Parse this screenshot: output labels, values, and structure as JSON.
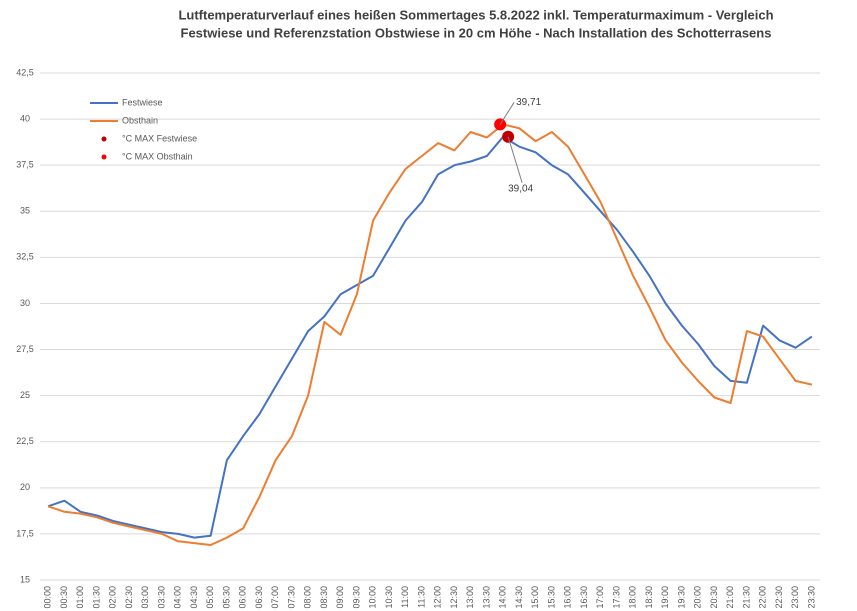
{
  "chart_data": {
    "type": "line",
    "title": [
      "Lutftemperaturverlauf eines heißen Sommertages 5.8.2022 inkl. Temperaturmaximum - Vergleich",
      "Festwiese und Referenzstation Obstwiese in 20 cm Höhe - Nach Installation des Schotterrasens"
    ],
    "categories": [
      "00:00",
      "00:30",
      "01:00",
      "01:30",
      "02:00",
      "02:30",
      "03:00",
      "03:30",
      "04:00",
      "04:30",
      "05:00",
      "05:30",
      "06:00",
      "06:30",
      "07:00",
      "07:30",
      "08:00",
      "08:30",
      "09:00",
      "09:30",
      "10:00",
      "10:30",
      "11:00",
      "11:30",
      "12:00",
      "12:30",
      "13:00",
      "13:30",
      "14:00",
      "14:30",
      "15:00",
      "15:30",
      "16:00",
      "16:30",
      "17:00",
      "17:30",
      "18:00",
      "18:30",
      "19:00",
      "19:30",
      "20:00",
      "20:30",
      "21:00",
      "21:30",
      "22:00",
      "22:30",
      "23:00",
      "23:30"
    ],
    "series": [
      {
        "name": "Festwiese",
        "color": "#4472c4",
        "values": [
          19.0,
          19.3,
          18.7,
          18.5,
          18.2,
          18.0,
          17.8,
          17.6,
          17.5,
          17.3,
          17.4,
          21.5,
          22.8,
          24.0,
          25.5,
          27.0,
          28.5,
          29.3,
          30.5,
          31.0,
          31.5,
          33.0,
          34.5,
          35.5,
          37.0,
          37.5,
          37.7,
          38.0,
          39.04,
          38.5,
          38.2,
          37.5,
          37.0,
          36.0,
          35.0,
          34.0,
          32.8,
          31.5,
          30.0,
          28.8,
          27.8,
          26.6,
          25.8,
          25.7,
          28.8,
          28.0,
          27.6,
          28.2
        ]
      },
      {
        "name": "Obsthain",
        "color": "#ed7d31",
        "values": [
          19.0,
          18.7,
          18.6,
          18.4,
          18.1,
          17.9,
          17.7,
          17.5,
          17.1,
          17.0,
          16.9,
          17.3,
          17.8,
          19.5,
          21.5,
          22.8,
          25.0,
          29.0,
          28.3,
          30.5,
          34.5,
          36.0,
          37.3,
          38.0,
          38.7,
          38.3,
          39.3,
          39.0,
          39.71,
          39.5,
          38.8,
          39.3,
          38.5,
          37.0,
          35.5,
          33.5,
          31.5,
          29.8,
          28.0,
          26.8,
          25.8,
          24.9,
          24.6,
          28.5,
          28.2,
          27.0,
          25.8,
          25.6
        ]
      },
      {
        "name": "°C MAX Festwiese",
        "color": "#c00000",
        "marker": true,
        "values": [
          null,
          null,
          null,
          null,
          null,
          null,
          null,
          null,
          null,
          null,
          null,
          null,
          null,
          null,
          null,
          null,
          null,
          null,
          null,
          null,
          null,
          null,
          null,
          null,
          null,
          null,
          null,
          null,
          39.04,
          null,
          null,
          null,
          null,
          null,
          null,
          null,
          null,
          null,
          null,
          null,
          null,
          null,
          null,
          null,
          null,
          null,
          null,
          null
        ],
        "value_labels": [
          null,
          null,
          null,
          null,
          null,
          null,
          null,
          null,
          null,
          null,
          null,
          null,
          null,
          null,
          null,
          null,
          null,
          null,
          null,
          null,
          null,
          null,
          null,
          null,
          null,
          null,
          null,
          null,
          "39,04",
          null,
          null,
          null,
          null,
          null,
          null,
          null,
          null,
          null,
          null,
          null,
          null,
          null,
          null,
          null,
          null,
          null,
          null,
          null
        ]
      },
      {
        "name": "°C MAX Obsthain",
        "color": "#ff0000",
        "marker": true,
        "values": [
          null,
          null,
          null,
          null,
          null,
          null,
          null,
          null,
          null,
          null,
          null,
          null,
          null,
          null,
          null,
          null,
          null,
          null,
          null,
          null,
          null,
          null,
          null,
          null,
          null,
          null,
          null,
          null,
          39.71,
          null,
          null,
          null,
          null,
          null,
          null,
          null,
          null,
          null,
          null,
          null,
          null,
          null,
          null,
          null,
          null,
          null,
          null,
          null
        ],
        "value_labels": [
          null,
          null,
          null,
          null,
          null,
          null,
          null,
          null,
          null,
          null,
          null,
          null,
          null,
          null,
          null,
          null,
          null,
          null,
          null,
          null,
          null,
          null,
          null,
          null,
          null,
          null,
          null,
          null,
          "39,71",
          null,
          null,
          null,
          null,
          null,
          null,
          null,
          null,
          null,
          null,
          null,
          null,
          null,
          null,
          null,
          null,
          null,
          null,
          null
        ]
      }
    ],
    "ylim": [
      15,
      42.5
    ],
    "yticks": [
      15,
      {
        "value": 17.5,
        "label": "17,5"
      },
      20,
      {
        "value": 22.5,
        "label": "22,5"
      },
      25,
      {
        "value": 27.5,
        "label": "27,5"
      },
      30,
      {
        "value": 32.5,
        "label": "32,5"
      },
      35,
      {
        "value": 37.5,
        "label": "37,5"
      },
      40,
      {
        "value": 42.5,
        "label": "42,5"
      }
    ],
    "grid": true,
    "legend": "upper left"
  }
}
